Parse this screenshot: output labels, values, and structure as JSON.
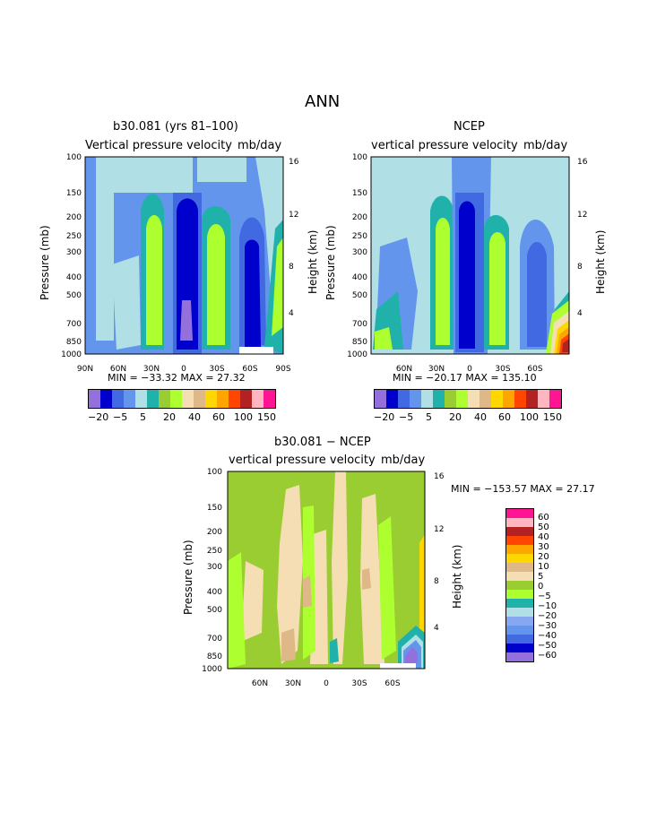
{
  "page_title": "ANN",
  "colors": {
    "bar1": [
      "#9370db",
      "#0000cd",
      "#4169e1",
      "#6495ed",
      "#b0e0e6",
      "#20b2aa",
      "#9acd32",
      "#adff2f",
      "#f5deb3",
      "#deb887",
      "#ffd700",
      "#ffa500",
      "#ff4500",
      "#b22222",
      "#ffb6c1",
      "#ff1493"
    ],
    "bar3": [
      "#9370db",
      "#0000cd",
      "#4169e1",
      "#6495ed",
      "#87a8f0",
      "#b0e0e6",
      "#20b2aa",
      "#adff2f",
      "#9acd32",
      "#f5deb3",
      "#deb887",
      "#ffd700",
      "#ffa500",
      "#ff4500",
      "#b22222",
      "#ffb6c1",
      "#ff1493"
    ]
  },
  "chart_data": [
    {
      "type": "heatmap",
      "title": "b30.081 (yrs 81–100)",
      "subtitle": "Vertical pressure velocity",
      "units": "mb/day",
      "ylabel": "Pressure (mb)",
      "y2label": "Height (km)",
      "yticks": [
        "100",
        "150",
        "200",
        "250",
        "300",
        "400",
        "500",
        "700",
        "850",
        "1000"
      ],
      "y2ticks": [
        "16",
        "12",
        "8",
        "4"
      ],
      "xticks": [
        "90N",
        "60N",
        "30N",
        "0",
        "30S",
        "60S",
        "90S"
      ],
      "minmax": "MIN = −33.32   MAX =   27.32",
      "colorbar_labels": [
        "−20",
        "−5",
        "5",
        "20",
        "40",
        "60",
        "100",
        "150"
      ],
      "colorbar_orientation": "horizontal"
    },
    {
      "type": "heatmap",
      "title": "NCEP",
      "subtitle": "vertical pressure velocity",
      "units": "mb/day",
      "ylabel": "Pressure (mb)",
      "y2label": "Height (km)",
      "yticks": [
        "100",
        "150",
        "200",
        "250",
        "300",
        "400",
        "500",
        "700",
        "850",
        "1000"
      ],
      "y2ticks": [
        "16",
        "12",
        "8",
        "4"
      ],
      "xticks": [
        "60N",
        "30N",
        "0",
        "30S",
        "60S"
      ],
      "minmax": "MIN = −20.17   MAX = 135.10",
      "colorbar_labels": [
        "−20",
        "−5",
        "5",
        "20",
        "40",
        "60",
        "100",
        "150"
      ],
      "colorbar_orientation": "horizontal"
    },
    {
      "type": "heatmap",
      "title": "b30.081 − NCEP",
      "subtitle": "vertical pressure velocity",
      "units": "mb/day",
      "ylabel": "Pressure (mb)",
      "y2label": "Height (km)",
      "yticks": [
        "100",
        "150",
        "200",
        "250",
        "300",
        "400",
        "500",
        "700",
        "850",
        "1000"
      ],
      "y2ticks": [
        "16",
        "12",
        "8",
        "4"
      ],
      "xticks": [
        "60N",
        "30N",
        "0",
        "30S",
        "60S"
      ],
      "minmax": "MIN = −153.57   MAX =   27.17",
      "colorbar_labels": [
        "60",
        "50",
        "40",
        "30",
        "20",
        "10",
        "5",
        "0",
        "−5",
        "−10",
        "−20",
        "−30",
        "−40",
        "−50",
        "−60"
      ],
      "colorbar_orientation": "vertical"
    }
  ]
}
